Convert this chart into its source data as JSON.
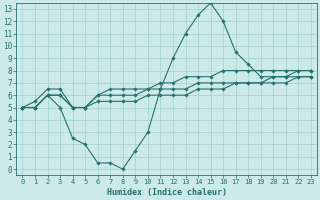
{
  "xlabel": "Humidex (Indice chaleur)",
  "xlim": [
    -0.5,
    23.5
  ],
  "ylim": [
    -0.5,
    13.5
  ],
  "xticks": [
    0,
    1,
    2,
    3,
    4,
    5,
    6,
    7,
    8,
    9,
    10,
    11,
    12,
    13,
    14,
    15,
    16,
    17,
    18,
    19,
    20,
    21,
    22,
    23
  ],
  "yticks": [
    0,
    1,
    2,
    3,
    4,
    5,
    6,
    7,
    8,
    9,
    10,
    11,
    12,
    13
  ],
  "bg_color": "#cceae8",
  "grid_color": "#aad4d0",
  "line_color": "#267070",
  "lines": [
    {
      "x": [
        0,
        1,
        2,
        3,
        4,
        5,
        6,
        7,
        8,
        9,
        10,
        11,
        12,
        13,
        14,
        15,
        16,
        17,
        18,
        19,
        20,
        21,
        22,
        23
      ],
      "y": [
        5,
        5,
        6,
        6,
        5,
        5,
        5.5,
        5.5,
        5.5,
        5.5,
        6,
        6,
        6,
        6,
        6.5,
        6.5,
        6.5,
        7,
        7,
        7,
        7,
        7,
        7.5,
        7.5
      ]
    },
    {
      "x": [
        0,
        1,
        2,
        3,
        4,
        5,
        6,
        7,
        8,
        9,
        10,
        11,
        12,
        13,
        14,
        15,
        16,
        17,
        18,
        19,
        20,
        21,
        22,
        23
      ],
      "y": [
        5,
        5,
        6,
        6,
        5,
        5,
        6,
        6,
        6,
        6,
        6.5,
        6.5,
        6.5,
        6.5,
        7,
        7,
        7,
        7,
        7,
        7,
        7.5,
        7.5,
        7.5,
        7.5
      ]
    },
    {
      "x": [
        0,
        1,
        2,
        3,
        4,
        5,
        6,
        7,
        8,
        9,
        10,
        11,
        12,
        13,
        14,
        15,
        16,
        17,
        18,
        19,
        20,
        21,
        22,
        23
      ],
      "y": [
        5,
        5.5,
        6.5,
        6.5,
        5,
        5,
        6,
        6.5,
        6.5,
        6.5,
        6.5,
        7,
        7,
        7.5,
        7.5,
        7.5,
        8,
        8,
        8,
        8,
        8,
        8,
        8,
        8
      ]
    },
    {
      "x": [
        0,
        1,
        2,
        3,
        4,
        5,
        6,
        7,
        8,
        9,
        10,
        11,
        12,
        13,
        14,
        15,
        16,
        17,
        18,
        19,
        20,
        21,
        22,
        23
      ],
      "y": [
        5,
        5,
        6,
        5,
        2.5,
        2,
        0.5,
        0.5,
        0,
        1.5,
        3,
        6.5,
        9,
        11,
        12.5,
        13.5,
        12,
        9.5,
        8.5,
        7.5,
        7.5,
        7.5,
        8,
        8
      ]
    }
  ]
}
